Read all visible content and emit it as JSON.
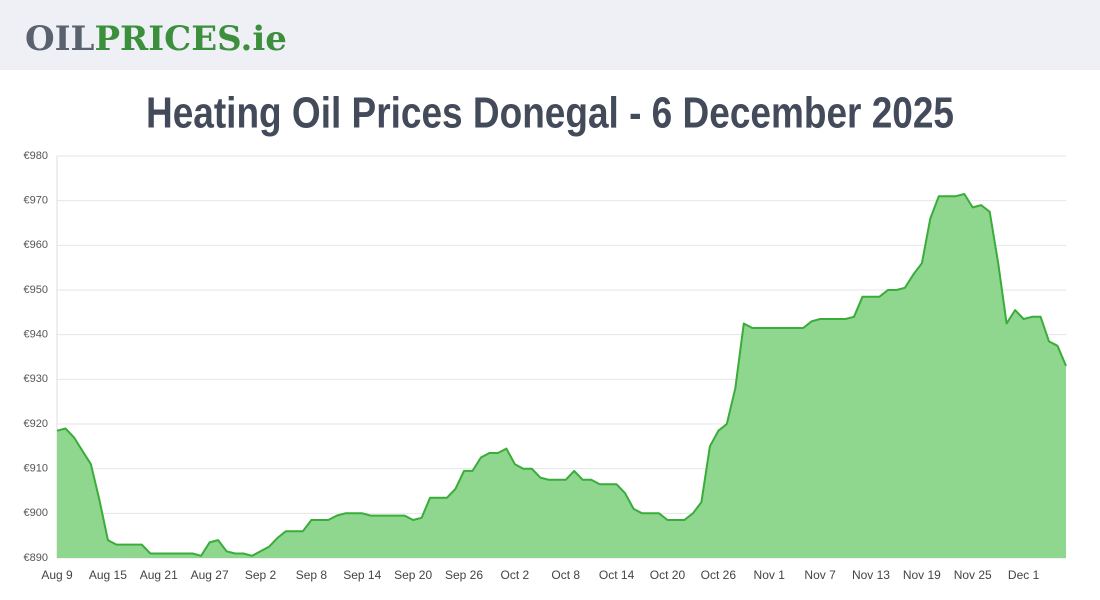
{
  "header": {
    "logo": [
      "OIL",
      "PRICES.ie"
    ]
  },
  "chart_data": {
    "type": "area",
    "title": "Heating Oil Prices Donegal - 6 December 2025",
    "categories": [
      "Aug 9",
      null,
      null,
      null,
      null,
      null,
      "Aug 15",
      null,
      null,
      null,
      null,
      null,
      "Aug 21",
      null,
      null,
      null,
      null,
      null,
      "Aug 27",
      null,
      null,
      null,
      null,
      null,
      "Sep 2",
      null,
      null,
      null,
      null,
      null,
      "Sep 8",
      null,
      null,
      null,
      null,
      null,
      "Sep 14",
      null,
      null,
      null,
      null,
      null,
      "Sep 20",
      null,
      null,
      null,
      null,
      null,
      "Sep 26",
      null,
      null,
      null,
      null,
      null,
      "Oct 2",
      null,
      null,
      null,
      null,
      null,
      "Oct 8",
      null,
      null,
      null,
      null,
      null,
      "Oct 14",
      null,
      null,
      null,
      null,
      null,
      "Oct 20",
      null,
      null,
      null,
      null,
      null,
      "Oct 26",
      null,
      null,
      null,
      null,
      null,
      "Nov 1",
      null,
      null,
      null,
      null,
      null,
      "Nov 7",
      null,
      null,
      null,
      null,
      null,
      "Nov 13",
      null,
      null,
      null,
      null,
      null,
      "Nov 19",
      null,
      null,
      null,
      null,
      null,
      "Nov 25",
      null,
      null,
      null,
      null,
      null,
      "Dec 1",
      null,
      null,
      null,
      null,
      null
    ],
    "values": [
      918.5,
      919,
      917,
      914,
      911,
      903,
      894,
      893,
      893,
      893,
      893,
      891,
      891,
      891,
      891,
      891,
      891,
      890.5,
      893.5,
      894,
      891.5,
      891,
      891,
      890.5,
      891.5,
      892.5,
      894.5,
      896,
      896,
      896,
      898.5,
      898.5,
      898.5,
      899.5,
      900,
      900,
      900,
      899.5,
      899.5,
      899.5,
      899.5,
      899.5,
      898.5,
      899,
      903.5,
      903.5,
      903.5,
      905.5,
      909.5,
      909.5,
      912.5,
      913.5,
      913.5,
      914.5,
      911,
      910,
      910,
      908,
      907.5,
      907.5,
      907.5,
      909.5,
      907.5,
      907.5,
      906.5,
      906.5,
      906.5,
      904.5,
      901,
      900,
      900,
      900,
      898.5,
      898.5,
      898.5,
      900,
      902.5,
      915,
      918.5,
      920,
      928,
      942.5,
      941.5,
      941.5,
      941.5,
      941.5,
      941.5,
      941.5,
      941.5,
      943,
      943.5,
      943.5,
      943.5,
      943.5,
      944,
      948.5,
      948.5,
      948.5,
      950,
      950,
      950.5,
      953.5,
      956,
      966,
      971,
      971,
      971,
      971.5,
      968.5,
      969,
      967.5,
      956,
      942.5,
      945.5,
      943.5,
      944,
      944,
      938.5,
      937.5,
      933
    ],
    "color": "#3aac3a",
    "fill": "#8fd68f",
    "ylim": [
      890,
      980
    ],
    "yticks": [
      {
        "value": 890,
        "label": "€890"
      },
      {
        "value": 900,
        "label": "€900"
      },
      {
        "value": 910,
        "label": "€910"
      },
      {
        "value": 920,
        "label": "€920"
      },
      {
        "value": 930,
        "label": "€930"
      },
      {
        "value": 940,
        "label": "€940"
      },
      {
        "value": 950,
        "label": "€950"
      },
      {
        "value": 960,
        "label": "€960"
      },
      {
        "value": 970,
        "label": "€970"
      },
      {
        "value": 980,
        "label": "€980"
      }
    ],
    "grid": true
  }
}
